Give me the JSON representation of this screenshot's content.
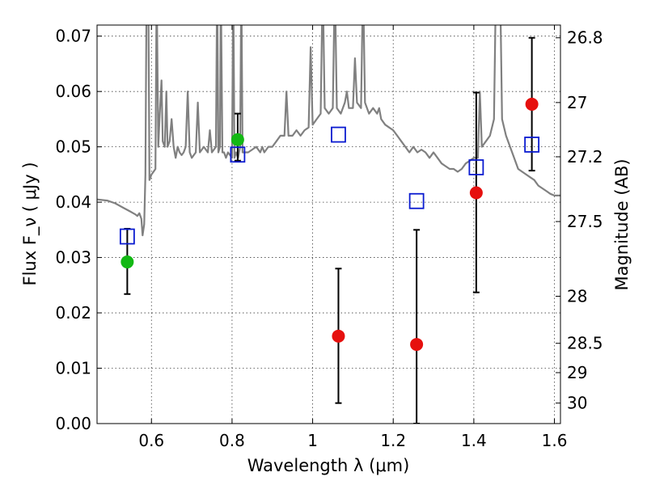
{
  "chart_data": {
    "type": "scatter",
    "title": "",
    "xlabel": "Wavelength  λ (μm)",
    "ylabel": "Flux  F_ν  ( μJy )",
    "ylabel_right": "Magnitude (AB)",
    "xlim": [
      0.465,
      1.615
    ],
    "ylim": [
      0.0,
      0.072
    ],
    "x_ticks": [
      0.6,
      0.8,
      1.0,
      1.2,
      1.4,
      1.6
    ],
    "x_tick_labels": [
      "0.6",
      "0.8",
      "1",
      "1.2",
      "1.4",
      "1.6"
    ],
    "y_ticks": [
      0.0,
      0.01,
      0.02,
      0.03,
      0.04,
      0.05,
      0.06,
      0.07
    ],
    "y_tick_labels": [
      "0.00",
      "0.01",
      "0.02",
      "0.03",
      "0.04",
      "0.05",
      "0.06",
      "0.07"
    ],
    "right_ticks": [
      {
        "label": "26.8",
        "flux": 0.0697
      },
      {
        "label": "27",
        "flux": 0.058
      },
      {
        "label": "27.2",
        "flux": 0.0482
      },
      {
        "label": "27.5",
        "flux": 0.0365
      },
      {
        "label": "28",
        "flux": 0.023
      },
      {
        "label": "28.5",
        "flux": 0.0145
      },
      {
        "label": "29",
        "flux": 0.0092
      },
      {
        "label": "30",
        "flux": 0.0037
      }
    ],
    "grid": true,
    "colors": {
      "spectrum": "#808080",
      "green_points": "#13b814",
      "red_points": "#e6100e",
      "model_squares": "#0a1bd0",
      "errorbars": "#000000"
    },
    "series": [
      {
        "name": "model spectrum",
        "kind": "line",
        "points": [
          [
            0.465,
            0.0405
          ],
          [
            0.49,
            0.0403
          ],
          [
            0.51,
            0.0398
          ],
          [
            0.53,
            0.039
          ],
          [
            0.55,
            0.0382
          ],
          [
            0.56,
            0.0378
          ],
          [
            0.565,
            0.0375
          ],
          [
            0.57,
            0.038
          ],
          [
            0.575,
            0.037
          ],
          [
            0.578,
            0.034
          ],
          [
            0.582,
            0.036
          ],
          [
            0.585,
            0.045
          ],
          [
            0.588,
            0.08
          ],
          [
            0.592,
            0.08
          ],
          [
            0.595,
            0.044
          ],
          [
            0.6,
            0.045
          ],
          [
            0.605,
            0.0455
          ],
          [
            0.61,
            0.046
          ],
          [
            0.613,
            0.08
          ],
          [
            0.617,
            0.05
          ],
          [
            0.62,
            0.055
          ],
          [
            0.625,
            0.062
          ],
          [
            0.628,
            0.051
          ],
          [
            0.633,
            0.05
          ],
          [
            0.637,
            0.06
          ],
          [
            0.64,
            0.05
          ],
          [
            0.645,
            0.051
          ],
          [
            0.65,
            0.055
          ],
          [
            0.655,
            0.05
          ],
          [
            0.66,
            0.048
          ],
          [
            0.665,
            0.05
          ],
          [
            0.67,
            0.049
          ],
          [
            0.675,
            0.0485
          ],
          [
            0.68,
            0.049
          ],
          [
            0.685,
            0.05
          ],
          [
            0.69,
            0.06
          ],
          [
            0.695,
            0.049
          ],
          [
            0.7,
            0.048
          ],
          [
            0.71,
            0.049
          ],
          [
            0.715,
            0.058
          ],
          [
            0.72,
            0.049
          ],
          [
            0.73,
            0.05
          ],
          [
            0.74,
            0.049
          ],
          [
            0.745,
            0.053
          ],
          [
            0.75,
            0.049
          ],
          [
            0.76,
            0.05
          ],
          [
            0.763,
            0.08
          ],
          [
            0.766,
            0.049
          ],
          [
            0.77,
            0.05
          ],
          [
            0.772,
            0.08
          ],
          [
            0.776,
            0.049
          ],
          [
            0.78,
            0.049
          ],
          [
            0.785,
            0.048
          ],
          [
            0.79,
            0.049
          ],
          [
            0.8,
            0.048
          ],
          [
            0.803,
            0.08
          ],
          [
            0.806,
            0.048
          ],
          [
            0.81,
            0.049
          ],
          [
            0.815,
            0.048
          ],
          [
            0.82,
            0.05
          ],
          [
            0.823,
            0.08
          ],
          [
            0.826,
            0.049
          ],
          [
            0.83,
            0.049
          ],
          [
            0.84,
            0.049
          ],
          [
            0.85,
            0.0495
          ],
          [
            0.86,
            0.05
          ],
          [
            0.87,
            0.049
          ],
          [
            0.875,
            0.05
          ],
          [
            0.88,
            0.049
          ],
          [
            0.89,
            0.05
          ],
          [
            0.9,
            0.05
          ],
          [
            0.91,
            0.051
          ],
          [
            0.92,
            0.052
          ],
          [
            0.93,
            0.052
          ],
          [
            0.935,
            0.06
          ],
          [
            0.94,
            0.052
          ],
          [
            0.95,
            0.052
          ],
          [
            0.96,
            0.053
          ],
          [
            0.97,
            0.052
          ],
          [
            0.98,
            0.053
          ],
          [
            0.99,
            0.0535
          ],
          [
            0.995,
            0.068
          ],
          [
            1.0,
            0.054
          ],
          [
            1.01,
            0.055
          ],
          [
            1.02,
            0.056
          ],
          [
            1.025,
            0.08
          ],
          [
            1.03,
            0.057
          ],
          [
            1.04,
            0.056
          ],
          [
            1.05,
            0.057
          ],
          [
            1.055,
            0.08
          ],
          [
            1.06,
            0.057
          ],
          [
            1.07,
            0.056
          ],
          [
            1.08,
            0.058
          ],
          [
            1.085,
            0.06
          ],
          [
            1.09,
            0.057
          ],
          [
            1.1,
            0.057
          ],
          [
            1.105,
            0.066
          ],
          [
            1.11,
            0.058
          ],
          [
            1.12,
            0.057
          ],
          [
            1.125,
            0.08
          ],
          [
            1.13,
            0.058
          ],
          [
            1.14,
            0.056
          ],
          [
            1.15,
            0.057
          ],
          [
            1.16,
            0.056
          ],
          [
            1.165,
            0.057
          ],
          [
            1.17,
            0.055
          ],
          [
            1.18,
            0.054
          ],
          [
            1.19,
            0.0535
          ],
          [
            1.2,
            0.053
          ],
          [
            1.21,
            0.052
          ],
          [
            1.22,
            0.051
          ],
          [
            1.23,
            0.05
          ],
          [
            1.24,
            0.049
          ],
          [
            1.25,
            0.05
          ],
          [
            1.26,
            0.049
          ],
          [
            1.27,
            0.0495
          ],
          [
            1.28,
            0.049
          ],
          [
            1.29,
            0.048
          ],
          [
            1.3,
            0.049
          ],
          [
            1.31,
            0.048
          ],
          [
            1.32,
            0.047
          ],
          [
            1.33,
            0.0465
          ],
          [
            1.34,
            0.046
          ],
          [
            1.35,
            0.046
          ],
          [
            1.36,
            0.0455
          ],
          [
            1.37,
            0.046
          ],
          [
            1.38,
            0.047
          ],
          [
            1.39,
            0.0475
          ],
          [
            1.4,
            0.048
          ],
          [
            1.41,
            0.048
          ],
          [
            1.415,
            0.06
          ],
          [
            1.42,
            0.05
          ],
          [
            1.43,
            0.051
          ],
          [
            1.44,
            0.052
          ],
          [
            1.45,
            0.055
          ],
          [
            1.455,
            0.08
          ],
          [
            1.465,
            0.08
          ],
          [
            1.47,
            0.055
          ],
          [
            1.48,
            0.052
          ],
          [
            1.49,
            0.05
          ],
          [
            1.5,
            0.048
          ],
          [
            1.51,
            0.046
          ],
          [
            1.52,
            0.0455
          ],
          [
            1.53,
            0.045
          ],
          [
            1.54,
            0.0445
          ],
          [
            1.55,
            0.044
          ],
          [
            1.56,
            0.043
          ],
          [
            1.57,
            0.0425
          ],
          [
            1.58,
            0.042
          ],
          [
            1.59,
            0.0415
          ],
          [
            1.6,
            0.0412
          ],
          [
            1.615,
            0.0412
          ]
        ]
      },
      {
        "name": "model photometry",
        "kind": "open-square",
        "points": [
          [
            0.54,
            0.0338
          ],
          [
            0.814,
            0.0486
          ],
          [
            1.064,
            0.0522
          ],
          [
            1.258,
            0.0402
          ],
          [
            1.406,
            0.0463
          ],
          [
            1.544,
            0.0504
          ]
        ]
      },
      {
        "name": "observed flux (green)",
        "kind": "filled-circle",
        "points": [
          {
            "x": 0.54,
            "y": 0.0292,
            "lo": 0.0234,
            "hi": 0.0352
          },
          {
            "x": 0.814,
            "y": 0.0513,
            "lo": 0.0475,
            "hi": 0.056
          }
        ]
      },
      {
        "name": "observed flux (red)",
        "kind": "filled-circle",
        "points": [
          {
            "x": 1.064,
            "y": 0.0158,
            "lo": 0.0037,
            "hi": 0.028
          },
          {
            "x": 1.258,
            "y": 0.0143,
            "lo": 0.0,
            "hi": 0.035
          },
          {
            "x": 1.406,
            "y": 0.0417,
            "lo": 0.0237,
            "hi": 0.0598
          },
          {
            "x": 1.544,
            "y": 0.0577,
            "lo": 0.0457,
            "hi": 0.0697
          }
        ]
      }
    ]
  }
}
